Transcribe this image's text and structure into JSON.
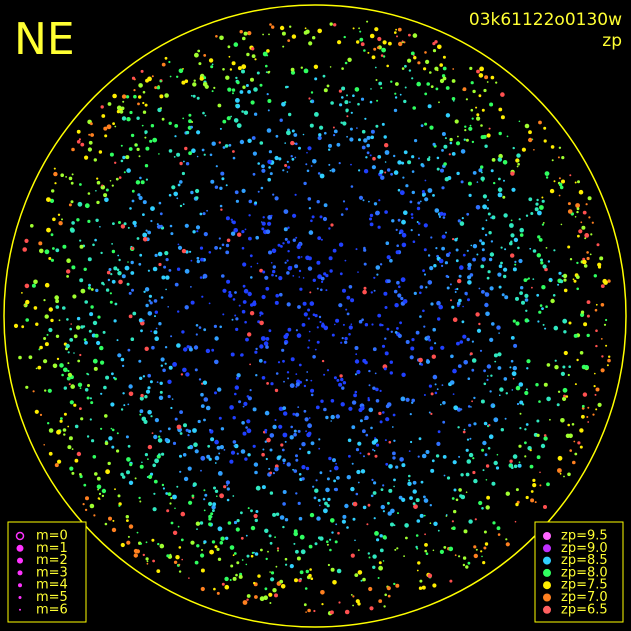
{
  "header": {
    "direction": "NE",
    "image_id": "03k61122o0130w",
    "map_quantity": "zp"
  },
  "legend_magnitude": {
    "items": [
      "m=0",
      "m=1",
      "m=2",
      "m=3",
      "m=4",
      "m=5",
      "m=6"
    ]
  },
  "legend_zp": {
    "items": [
      {
        "label": "zp=9.5",
        "color": "#ff66ff"
      },
      {
        "label": "zp=9.0",
        "color": "#c030ff"
      },
      {
        "label": "zp=8.5",
        "color": "#30d0ff"
      },
      {
        "label": "zp=8.0",
        "color": "#30ff60"
      },
      {
        "label": "zp=7.5",
        "color": "#ffee00"
      },
      {
        "label": "zp=7.0",
        "color": "#ff8020"
      },
      {
        "label": "zp=6.5",
        "color": "#ff6060"
      }
    ]
  }
}
